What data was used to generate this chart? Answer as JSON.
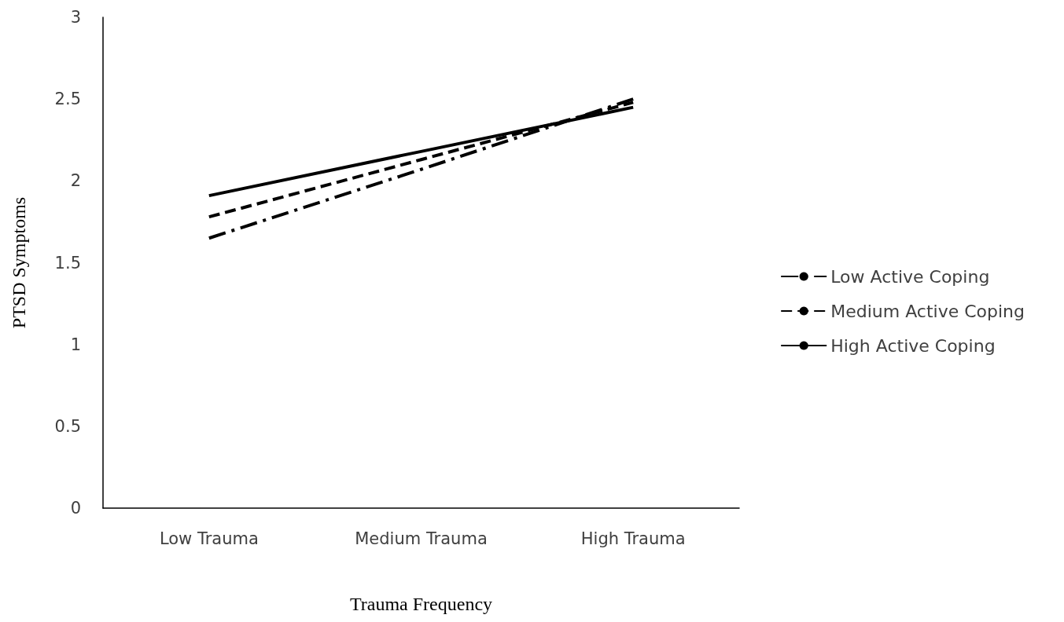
{
  "chart_data": {
    "type": "line",
    "xlabel": "Trauma Frequency",
    "ylabel": "PTSD Symptoms",
    "categories": [
      "Low Trauma",
      "Medium Trauma",
      "High Trauma"
    ],
    "series": [
      {
        "name": "Low Active Coping",
        "color": "#000000",
        "line_style": "dashdot",
        "values": [
          1.65,
          2.07,
          2.5
        ]
      },
      {
        "name": "Medium Active Coping",
        "color": "#000000",
        "line_style": "dashed",
        "values": [
          1.78,
          2.13,
          2.48
        ]
      },
      {
        "name": "High Active Coping",
        "color": "#000000",
        "line_style": "solid",
        "values": [
          1.91,
          2.18,
          2.45
        ]
      }
    ],
    "ylim": [
      0,
      3
    ],
    "yticks": [
      0,
      0.5,
      1,
      1.5,
      2,
      2.5,
      3
    ],
    "grid": false,
    "legend": "right",
    "marker": "none"
  }
}
